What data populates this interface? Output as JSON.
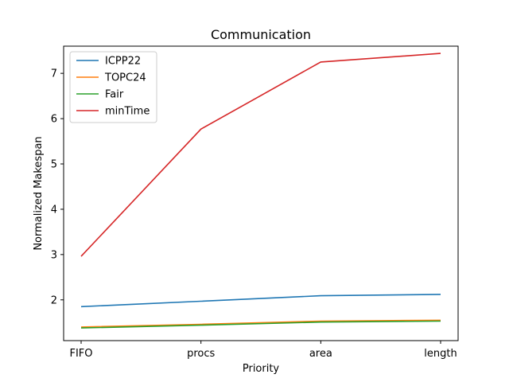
{
  "chart_data": {
    "type": "line",
    "title": "Communication",
    "xlabel": "Priority",
    "ylabel": "Normalized Makespan",
    "categories": [
      "FIFO",
      "procs",
      "area",
      "length"
    ],
    "ylim": [
      1.1,
      7.6
    ],
    "yticks": [
      2,
      3,
      4,
      5,
      6,
      7
    ],
    "grid": false,
    "legend_position": "top-left",
    "series": [
      {
        "name": "ICPP22",
        "color": "#1f77b4",
        "values": [
          1.85,
          1.97,
          2.09,
          2.12
        ]
      },
      {
        "name": "TOPC24",
        "color": "#ff7f0e",
        "values": [
          1.4,
          1.46,
          1.53,
          1.55
        ]
      },
      {
        "name": "Fair",
        "color": "#2ca02c",
        "values": [
          1.38,
          1.44,
          1.51,
          1.53
        ]
      },
      {
        "name": "minTime",
        "color": "#d62728",
        "values": [
          2.96,
          5.77,
          7.25,
          7.44
        ]
      }
    ]
  }
}
